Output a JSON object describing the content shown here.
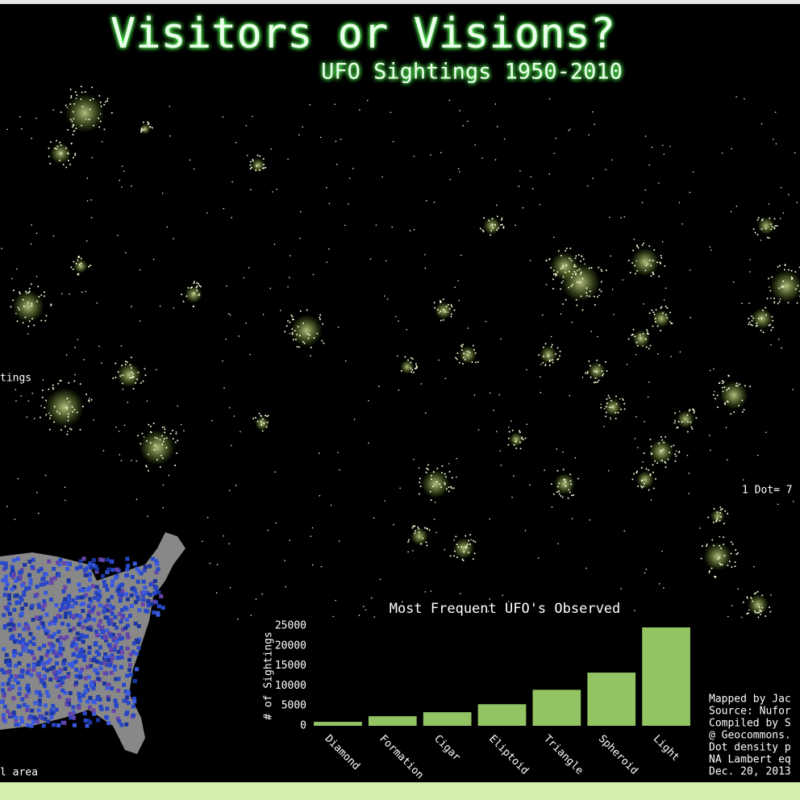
{
  "header": {
    "title": "Visitors or Visions?",
    "subtitle": "UFO Sightings 1950-2010"
  },
  "map": {
    "legend_fragment": "tings",
    "dot_note": "1 Dot= 7",
    "inset_note": "l area"
  },
  "credits": [
    "Mapped by Jac",
    "Source: Nufor",
    "Compiled by S",
    "@ Geocommons.",
    "Dot density p",
    "NA Lambert eq",
    "Dec. 20, 2013"
  ],
  "chart_data": {
    "type": "bar",
    "title": "Most Frequent UFO's Observed",
    "y_label": "# of Sightings",
    "categories": [
      "Diamond",
      "Formation",
      "Cigar",
      "Eliptoid",
      "Triangle",
      "Spheroid",
      "Light"
    ],
    "values": [
      1000,
      2400,
      3400,
      5400,
      9000,
      13300,
      24600
    ],
    "color": "#92c464",
    "ylim": [
      0,
      25000
    ],
    "yticks": [
      0,
      5000,
      10000,
      15000,
      20000,
      25000
    ]
  }
}
